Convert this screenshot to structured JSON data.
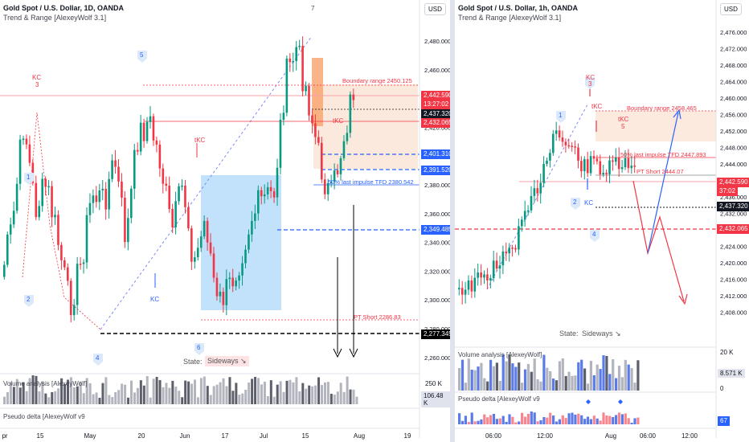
{
  "left": {
    "title": "Gold Spot / U.S. Dollar, 1D, OANDA",
    "indicator": "Trend & Range [AlexeyWolf 3.1]",
    "currency": "USD",
    "top_marker": "7",
    "price_axis": [
      "2,480.000",
      "2,460.000",
      "2,440.000",
      "2,420.000",
      "2,400.000",
      "2,380.000",
      "2,360.000",
      "2,340.000",
      "2,320.000",
      "2,300.000",
      "2,280.000",
      "2,260.000"
    ],
    "time_axis": [
      "pr",
      "15",
      "May",
      "20",
      "Jun",
      "17",
      "Jul",
      "15",
      "Aug",
      "19"
    ],
    "price_tags": [
      {
        "text": "2,442.590",
        "color": "#f23645"
      },
      {
        "text": "13:27:02",
        "color": "#f23645"
      },
      {
        "text": "2,437.320",
        "color": "#131722"
      },
      {
        "text": "2,432.065",
        "color": "#f23645"
      },
      {
        "text": "2,401.310",
        "color": "#2962ff"
      },
      {
        "text": "2,391.520",
        "color": "#2962ff"
      },
      {
        "text": "2,349.485",
        "color": "#2962ff"
      },
      {
        "text": "2,277.345",
        "color": "#000000"
      }
    ],
    "annotations": {
      "boundary": "Boundary range 2450.125",
      "impulse": "50% last impulse TFD 2380.542",
      "pt_short": "PT Short 2286.83",
      "kc_top": "KC",
      "kc_top_num": "3",
      "tkc_mid": "tKC",
      "tkc_right": "tKC",
      "kc_low": "KC",
      "wave1": "1",
      "wave2": "2",
      "wave4": "4",
      "wave5": "5",
      "wave6": "6"
    },
    "state_label": "State:",
    "state_value": "Sideways ↘",
    "volume_label": "Volume analysis [AlexeyWolf]",
    "volume_axis": [
      "250 K",
      "0"
    ],
    "volume_value": "106.48 K",
    "delta_label": "Pseudo delta [AlexeyWolf v9"
  },
  "right": {
    "title": "Gold Spot / U.S. Dollar, 1h, OANDA",
    "indicator": "Trend & Range [AlexeyWolf 3.1]",
    "currency": "USD",
    "price_axis": [
      "2,476.000",
      "2,472.000",
      "2,468.000",
      "2,464.000",
      "2,460.000",
      "2,456.000",
      "2,452.000",
      "2,448.000",
      "2,444.000",
      "2,440.000",
      "2,436.000",
      "2,432.000",
      "2,428.000",
      "2,424.000",
      "2,420.000",
      "2,416.000",
      "2,412.000",
      "2,408.000"
    ],
    "time_axis": [
      "06:00",
      "12:00",
      "Aug",
      "06:00",
      "12:00"
    ],
    "price_tags": [
      {
        "text": "2,442.590",
        "color": "#f23645"
      },
      {
        "text": "37:02",
        "color": "#f23645"
      },
      {
        "text": "2,437.320",
        "color": "#131722"
      },
      {
        "text": "2,432.065",
        "color": "#f23645"
      }
    ],
    "annotations": {
      "boundary": "Boundary range 2458.465",
      "impulse": "50% last impulse TFD 2447.893",
      "pt_short": "PT Short 2444.07",
      "kc_top": "KC",
      "kc_top_num": "3",
      "tkc1": "tKC",
      "tkc2": "tKC",
      "tkc2_num": "5",
      "kc_low": "KC",
      "wave1": "1",
      "wave2": "2",
      "wave4": "4"
    },
    "state_label": "State:",
    "state_value": "Sideways ↘",
    "volume_label": "Volume analysis [AlexeyWolf]",
    "volume_axis": [
      "20 K",
      "0"
    ],
    "volume_value": "8.571 K",
    "delta_label": "Pseudo delta [AlexeyWolf v9",
    "delta_value": "67"
  },
  "colors": {
    "up": "#089981",
    "down": "#f23645",
    "blue": "#2962ff",
    "grid": "#f0f3fa"
  }
}
